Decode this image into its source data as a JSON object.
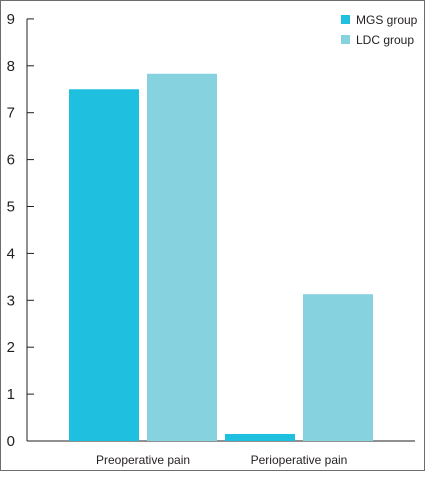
{
  "chart_data": {
    "type": "bar",
    "categories": [
      "Preoperative pain",
      "Perioperative pain"
    ],
    "series": [
      {
        "name": "MGS group",
        "color": "#1fbfdf",
        "values": [
          7.5,
          0.15
        ]
      },
      {
        "name": "LDC group",
        "color": "#86d2df",
        "values": [
          7.83,
          3.13
        ]
      }
    ],
    "ylim": [
      0,
      9
    ],
    "yticks": [
      "0",
      "1",
      "2",
      "3",
      "4",
      "5",
      "6",
      "7",
      "8",
      "9"
    ],
    "legend_position": "top-right",
    "grid": false
  }
}
